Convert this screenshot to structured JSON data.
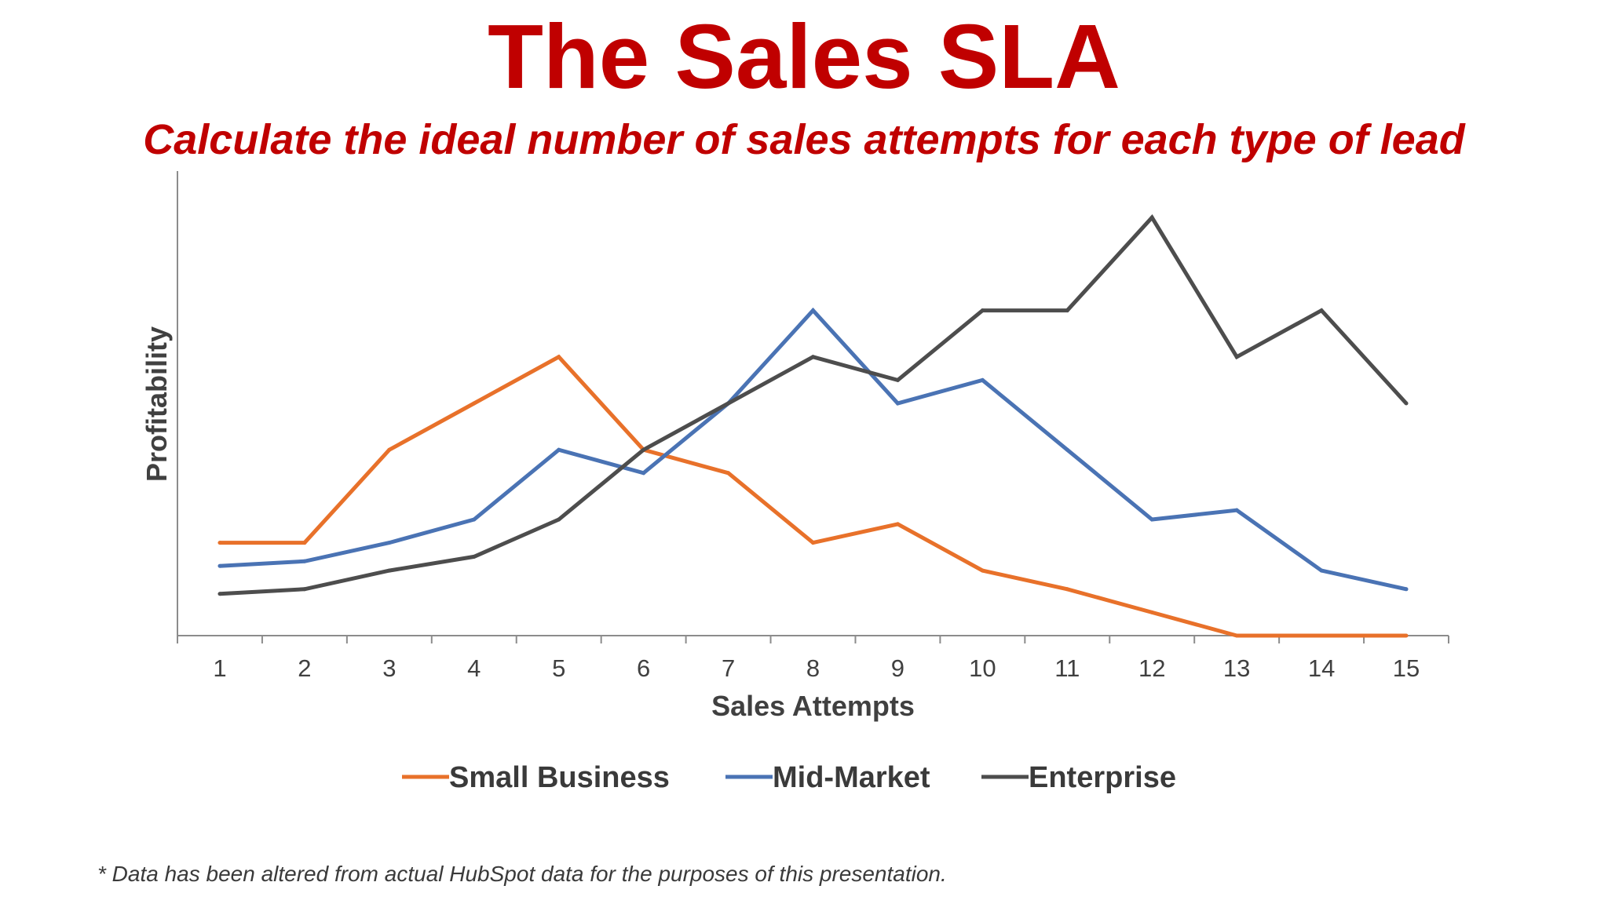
{
  "title": "The Sales SLA",
  "subtitle": "Calculate the ideal number of sales attempts for each type of lead",
  "footnote": "* Data has been altered from actual HubSpot data for the purposes of this presentation.",
  "chart_data": {
    "type": "line",
    "title": "",
    "xlabel": "Sales Attempts",
    "ylabel": "Profitability",
    "x": [
      1,
      2,
      3,
      4,
      5,
      6,
      7,
      8,
      9,
      10,
      11,
      12,
      13,
      14,
      15
    ],
    "ylim": [
      0,
      100
    ],
    "grid": false,
    "y_ticks_shown": false,
    "legend_position": "bottom",
    "series": [
      {
        "name": "Small Business",
        "color": "#e8712a",
        "values": [
          20,
          20,
          40,
          50,
          60,
          40,
          35,
          20,
          24,
          14,
          10,
          5,
          0,
          0,
          0
        ]
      },
      {
        "name": "Mid-Market",
        "color": "#4a73b4",
        "values": [
          15,
          16,
          20,
          25,
          40,
          35,
          50,
          70,
          50,
          55,
          40,
          25,
          27,
          14,
          10
        ]
      },
      {
        "name": "Enterprise",
        "color": "#4d4d4d",
        "values": [
          9,
          10,
          14,
          17,
          25,
          40,
          50,
          60,
          55,
          70,
          70,
          90,
          60,
          70,
          50
        ]
      }
    ]
  }
}
